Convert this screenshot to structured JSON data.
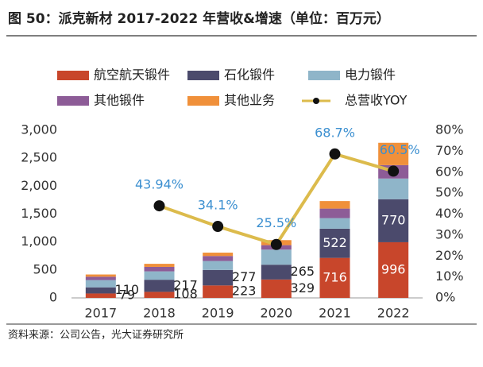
{
  "chart_data": {
    "type": "bar",
    "title": "图 50：派克新材 2017-2022 年营收&增速（单位：百万元）",
    "source": "资料来源：公司公告，光大证券研究所",
    "categories": [
      "2017",
      "2018",
      "2019",
      "2020",
      "2021",
      "2022"
    ],
    "ylim": [
      0,
      3000
    ],
    "yticks": [
      0,
      500,
      {
        "value": 1000,
        "label": "1,000"
      },
      {
        "value": 1500,
        "label": "1,500"
      },
      {
        "value": 2000,
        "label": "2,000"
      },
      {
        "value": 2500,
        "label": "2,500"
      },
      {
        "value": 3000,
        "label": "3,000"
      }
    ],
    "y2lim": [
      0,
      80
    ],
    "y2ticks": [
      {
        "value": 0,
        "label": "0%"
      },
      {
        "value": 10,
        "label": "10%"
      },
      {
        "value": 20,
        "label": "20%"
      },
      {
        "value": 30,
        "label": "30%"
      },
      {
        "value": 40,
        "label": "40%"
      },
      {
        "value": 50,
        "label": "50%"
      },
      {
        "value": 60,
        "label": "60%"
      },
      {
        "value": 70,
        "label": "70%"
      },
      {
        "value": 80,
        "label": "80%"
      }
    ],
    "series": [
      {
        "name": "航空航天锻件",
        "color": "#c8462b",
        "values": [
          79,
          108,
          223,
          329,
          716,
          996
        ],
        "data_labels": true
      },
      {
        "name": "石化锻件",
        "color": "#4b4a6c",
        "values": [
          110,
          217,
          277,
          265,
          522,
          770
        ],
        "data_labels": true
      },
      {
        "name": "电力锻件",
        "color": "#8fb5c9",
        "values": [
          130,
          150,
          160,
          270,
          190,
          370
        ]
      },
      {
        "name": "其他锻件",
        "color": "#8d5c97",
        "values": [
          60,
          80,
          90,
          80,
          170,
          240
        ]
      },
      {
        "name": "其他业务",
        "color": "#f0903a",
        "values": [
          40,
          55,
          60,
          90,
          135,
          400
        ]
      },
      {
        "name": "总营收YOY",
        "type": "line",
        "axis": "y2",
        "color": "#dcbb4c",
        "marker_color": "#111111",
        "label_color": "#3b8fd0",
        "values": [
          null,
          43.94,
          34.1,
          25.5,
          68.7,
          60.5
        ],
        "value_labels": [
          null,
          "43.94%",
          "34.1%",
          "25.5%",
          "68.7%",
          "60.5%"
        ]
      }
    ]
  }
}
